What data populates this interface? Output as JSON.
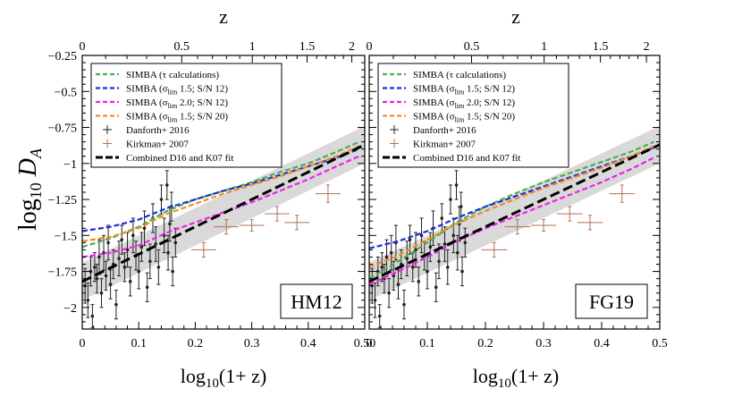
{
  "chart_data": {
    "type": "line",
    "y_axis_title": "log10 D_A",
    "x_axis_title": "log10(1+ z)",
    "top_axis_title": "z",
    "xlim": [
      0,
      0.5
    ],
    "ylim": [
      -2.15,
      -0.25
    ],
    "x_ticks": [
      0,
      0.1,
      0.2,
      0.3,
      0.4,
      0.5
    ],
    "x_tick_labels": [
      "0",
      "0.1",
      "0.2",
      "0.3",
      "0.4",
      "0.50"
    ],
    "x_tick_labels_right": [
      "0",
      "0.1",
      "0.2",
      "0.3",
      "0.4",
      "0.5"
    ],
    "y_ticks": [
      -0.25,
      -0.5,
      -0.75,
      -1,
      -1.25,
      -1.5,
      -1.75,
      -2
    ],
    "y_tick_labels": [
      "−0.25",
      "−0.5",
      "−0.75",
      "−1",
      "−1.25",
      "−1.5",
      "−1.75",
      "−2"
    ],
    "top_ticks_z": [
      0,
      0.5,
      1,
      1.5,
      2
    ],
    "top_tick_labels": [
      "0",
      "0.5",
      "1",
      "1.5",
      "2"
    ],
    "legend": [
      {
        "label": "SIMBA (τ calculations)",
        "color": "#4caf50",
        "style": "dashed"
      },
      {
        "label": "SIMBA  (σlim 1.5; S/N 12)",
        "color": "#1f2ed6",
        "style": "dashed"
      },
      {
        "label": "SIMBA  (σlim 2.0; S/N 12)",
        "color": "#ee22ee",
        "style": "dashed"
      },
      {
        "label": "SIMBA  (σlim 1.5; S/N 20)",
        "color": "#f28c1e",
        "style": "dashed"
      },
      {
        "label": "Danforth+ 2016",
        "color": "#222222",
        "style": "errorbar"
      },
      {
        "label": "Kirkman+ 2007",
        "color": "#b5704a",
        "style": "errorbar"
      },
      {
        "label": "Combined D16 and K07 fit",
        "color": "#000000",
        "style": "dashed-thick"
      }
    ],
    "fit": {
      "x": [
        0,
        0.5
      ],
      "y": [
        -1.82,
        -0.87
      ],
      "band": 0.13
    },
    "kirkman": [
      {
        "x": 0.215,
        "y": -1.6,
        "xerr": 0.022,
        "yerr": 0.05
      },
      {
        "x": 0.255,
        "y": -1.44,
        "xerr": 0.022,
        "yerr": 0.05
      },
      {
        "x": 0.3,
        "y": -1.43,
        "xerr": 0.022,
        "yerr": 0.04
      },
      {
        "x": 0.345,
        "y": -1.35,
        "xerr": 0.022,
        "yerr": 0.05
      },
      {
        "x": 0.38,
        "y": -1.41,
        "xerr": 0.022,
        "yerr": 0.05
      },
      {
        "x": 0.435,
        "y": -1.21,
        "xerr": 0.022,
        "yerr": 0.06
      }
    ],
    "danforth": [
      {
        "x": 0.005,
        "y": -1.85,
        "yerr": 0.12
      },
      {
        "x": 0.01,
        "y": -1.95,
        "yerr": 0.12
      },
      {
        "x": 0.015,
        "y": -1.75,
        "yerr": 0.1
      },
      {
        "x": 0.018,
        "y": -2.06,
        "yerr": 0.08
      },
      {
        "x": 0.022,
        "y": -1.72,
        "yerr": 0.1
      },
      {
        "x": 0.026,
        "y": -1.8,
        "yerr": 0.1
      },
      {
        "x": 0.03,
        "y": -1.65,
        "yerr": 0.12
      },
      {
        "x": 0.034,
        "y": -1.9,
        "yerr": 0.1
      },
      {
        "x": 0.038,
        "y": -1.62,
        "yerr": 0.12
      },
      {
        "x": 0.042,
        "y": -1.78,
        "yerr": 0.1
      },
      {
        "x": 0.046,
        "y": -1.55,
        "yerr": 0.12
      },
      {
        "x": 0.05,
        "y": -1.84,
        "yerr": 0.1
      },
      {
        "x": 0.055,
        "y": -1.7,
        "yerr": 0.1
      },
      {
        "x": 0.06,
        "y": -1.98,
        "yerr": 0.1
      },
      {
        "x": 0.065,
        "y": -1.66,
        "yerr": 0.12
      },
      {
        "x": 0.07,
        "y": -1.53,
        "yerr": 0.1
      },
      {
        "x": 0.075,
        "y": -1.72,
        "yerr": 0.1
      },
      {
        "x": 0.08,
        "y": -1.6,
        "yerr": 0.12
      },
      {
        "x": 0.085,
        "y": -1.82,
        "yerr": 0.1
      },
      {
        "x": 0.09,
        "y": -1.5,
        "yerr": 0.12
      },
      {
        "x": 0.095,
        "y": -1.64,
        "yerr": 0.1
      },
      {
        "x": 0.1,
        "y": -1.75,
        "yerr": 0.12
      },
      {
        "x": 0.105,
        "y": -1.58,
        "yerr": 0.1
      },
      {
        "x": 0.11,
        "y": -1.45,
        "yerr": 0.12
      },
      {
        "x": 0.115,
        "y": -1.86,
        "yerr": 0.1
      },
      {
        "x": 0.12,
        "y": -1.68,
        "yerr": 0.12
      },
      {
        "x": 0.125,
        "y": -1.38,
        "yerr": 0.1
      },
      {
        "x": 0.13,
        "y": -1.56,
        "yerr": 0.12
      },
      {
        "x": 0.135,
        "y": -1.72,
        "yerr": 0.12
      },
      {
        "x": 0.14,
        "y": -1.25,
        "yerr": 0.1
      },
      {
        "x": 0.145,
        "y": -1.5,
        "yerr": 0.12
      },
      {
        "x": 0.15,
        "y": -1.15,
        "yerr": 0.1
      },
      {
        "x": 0.152,
        "y": -1.62,
        "yerr": 0.12
      },
      {
        "x": 0.155,
        "y": -1.42,
        "yerr": 0.12
      },
      {
        "x": 0.158,
        "y": -1.3,
        "yerr": 0.1
      },
      {
        "x": 0.16,
        "y": -1.75,
        "yerr": 0.1
      },
      {
        "x": 0.165,
        "y": -1.55,
        "yerr": 0.1
      }
    ],
    "panels": [
      {
        "label": "HM12",
        "series": [
          {
            "name": "SIMBA (τ calculations)",
            "x": [
              0,
              0.05,
              0.1,
              0.15,
              0.2,
              0.25,
              0.3,
              0.35,
              0.4,
              0.45,
              0.49
            ],
            "y": [
              -1.58,
              -1.52,
              -1.44,
              -1.33,
              -1.25,
              -1.19,
              -1.13,
              -1.06,
              -1.0,
              -0.92,
              -0.85
            ]
          },
          {
            "name": "SIMBA  (σlim 1.5; S/N 12)",
            "x": [
              0,
              0.05,
              0.1,
              0.15,
              0.2,
              0.25,
              0.3,
              0.35,
              0.4,
              0.45,
              0.49
            ],
            "y": [
              -1.47,
              -1.44,
              -1.39,
              -1.31,
              -1.25,
              -1.19,
              -1.14,
              -1.08,
              -1.02,
              -0.96,
              -0.9
            ]
          },
          {
            "name": "SIMBA  (σlim 2.0; S/N 12)",
            "x": [
              0,
              0.05,
              0.1,
              0.15,
              0.2,
              0.25,
              0.3,
              0.35,
              0.4,
              0.45,
              0.49
            ],
            "y": [
              -1.65,
              -1.62,
              -1.57,
              -1.48,
              -1.41,
              -1.34,
              -1.27,
              -1.19,
              -1.11,
              -1.02,
              -0.95
            ]
          },
          {
            "name": "SIMBA  (σlim 1.5; S/N 20)",
            "x": [
              0,
              0.05,
              0.1,
              0.15,
              0.2,
              0.25,
              0.3,
              0.35,
              0.4,
              0.45,
              0.49
            ],
            "y": [
              -1.54,
              -1.51,
              -1.45,
              -1.35,
              -1.28,
              -1.21,
              -1.15,
              -1.09,
              -1.02,
              -0.95,
              -0.88
            ]
          }
        ]
      },
      {
        "label": "FG19",
        "series": [
          {
            "name": "SIMBA (τ calculations)",
            "x": [
              0,
              0.05,
              0.1,
              0.15,
              0.2,
              0.25,
              0.3,
              0.35,
              0.4,
              0.45,
              0.49
            ],
            "y": [
              -1.8,
              -1.68,
              -1.55,
              -1.41,
              -1.3,
              -1.21,
              -1.13,
              -1.06,
              -0.99,
              -0.92,
              -0.85
            ]
          },
          {
            "name": "SIMBA  (σlim 1.5; S/N 12)",
            "x": [
              0,
              0.05,
              0.1,
              0.15,
              0.2,
              0.25,
              0.3,
              0.35,
              0.4,
              0.45,
              0.49
            ],
            "y": [
              -1.59,
              -1.54,
              -1.47,
              -1.38,
              -1.3,
              -1.23,
              -1.16,
              -1.09,
              -1.02,
              -0.95,
              -0.89
            ]
          },
          {
            "name": "SIMBA  (σlim 2.0; S/N 12)",
            "x": [
              0,
              0.05,
              0.1,
              0.15,
              0.2,
              0.25,
              0.3,
              0.35,
              0.4,
              0.45,
              0.49
            ],
            "y": [
              -1.84,
              -1.75,
              -1.65,
              -1.54,
              -1.45,
              -1.37,
              -1.29,
              -1.21,
              -1.13,
              -1.04,
              -0.96
            ]
          },
          {
            "name": "SIMBA  (σlim 1.5; S/N 20)",
            "x": [
              0,
              0.05,
              0.1,
              0.15,
              0.2,
              0.25,
              0.3,
              0.35,
              0.4,
              0.45,
              0.49
            ],
            "y": [
              -1.72,
              -1.64,
              -1.53,
              -1.42,
              -1.33,
              -1.25,
              -1.17,
              -1.1,
              -1.03,
              -0.95,
              -0.88
            ]
          }
        ]
      }
    ]
  }
}
